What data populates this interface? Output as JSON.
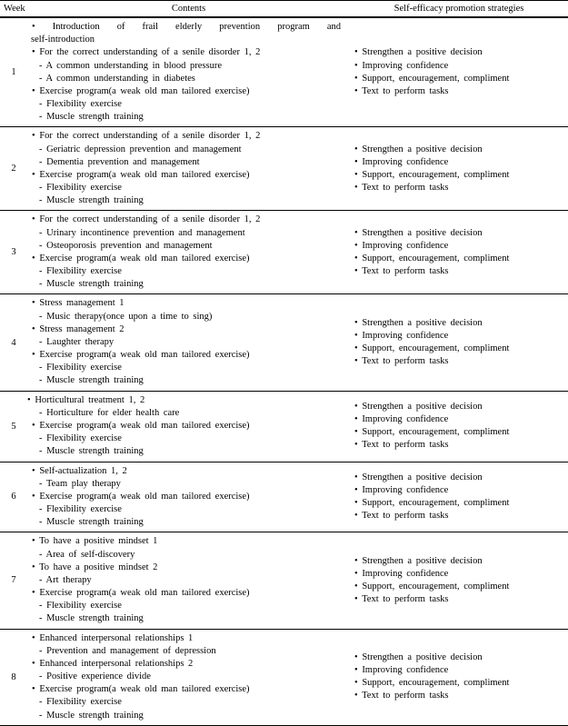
{
  "headers": {
    "week": "Week",
    "contents": "Contents",
    "strategies": "Self-efficacy promotion strategies"
  },
  "strategies_common": [
    "Strengthen a positive decision",
    "Improving confidence",
    "Support, encouragement, compliment",
    "Text to perform tasks"
  ],
  "rows": [
    {
      "week": "1",
      "contents": [
        {
          "type": "bullet-justify",
          "text": "Introduction of frail elderly prevention program and"
        },
        {
          "type": "plain",
          "text": "self-introduction"
        },
        {
          "type": "bullet",
          "text": "For the correct understanding of a senile disorder 1, 2"
        },
        {
          "type": "sub",
          "text": "A common understanding in blood pressure"
        },
        {
          "type": "sub",
          "text": "A common understanding in diabetes"
        },
        {
          "type": "bullet",
          "text": "Exercise program(a weak old man tailored exercise)"
        },
        {
          "type": "sub",
          "text": "Flexibility exercise"
        },
        {
          "type": "sub",
          "text": "Muscle strength training"
        }
      ]
    },
    {
      "week": "2",
      "contents": [
        {
          "type": "bullet",
          "text": "For the correct understanding of a senile disorder 1, 2"
        },
        {
          "type": "sub",
          "text": "Geriatric depression prevention and management"
        },
        {
          "type": "sub",
          "text": "Dementia prevention and management"
        },
        {
          "type": "bullet",
          "text": "Exercise program(a weak old man tailored exercise)"
        },
        {
          "type": "sub",
          "text": "Flexibility exercise"
        },
        {
          "type": "sub",
          "text": "Muscle strength training"
        }
      ]
    },
    {
      "week": "3",
      "contents": [
        {
          "type": "bullet",
          "text": "For the correct understanding of a senile disorder 1, 2"
        },
        {
          "type": "sub",
          "text": "Urinary incontinence prevention and management"
        },
        {
          "type": "sub",
          "text": "Osteoporosis prevention and management"
        },
        {
          "type": "bullet",
          "text": "Exercise program(a weak old man tailored exercise)"
        },
        {
          "type": "sub",
          "text": "Flexibility exercise"
        },
        {
          "type": "sub",
          "text": "Muscle strength training"
        }
      ]
    },
    {
      "week": "4",
      "contents": [
        {
          "type": "bullet",
          "text": "Stress management 1"
        },
        {
          "type": "sub",
          "text": "Music therapy(once upon a time to sing)"
        },
        {
          "type": "bullet",
          "text": "Stress management 2"
        },
        {
          "type": "sub",
          "text": "Laughter therapy"
        },
        {
          "type": "bullet",
          "text": "Exercise program(a weak old man tailored exercise)"
        },
        {
          "type": "sub",
          "text": "Flexibility exercise"
        },
        {
          "type": "sub",
          "text": "Muscle strength training"
        }
      ]
    },
    {
      "week": "5",
      "contents": [
        {
          "type": "bullet-tight",
          "text": "Horticultural treatment 1, 2"
        },
        {
          "type": "sub",
          "text": "Horticulture for elder health care"
        },
        {
          "type": "bullet",
          "text": "Exercise program(a weak old man tailored exercise)"
        },
        {
          "type": "sub",
          "text": "Flexibility exercise"
        },
        {
          "type": "sub",
          "text": "Muscle strength training"
        }
      ]
    },
    {
      "week": "6",
      "contents": [
        {
          "type": "bullet",
          "text": "Self-actualization 1, 2"
        },
        {
          "type": "sub",
          "text": "Team play therapy"
        },
        {
          "type": "bullet",
          "text": "Exercise program(a weak old man tailored exercise)"
        },
        {
          "type": "sub",
          "text": "Flexibility exercise"
        },
        {
          "type": "sub",
          "text": "Muscle strength training"
        }
      ]
    },
    {
      "week": "7",
      "contents": [
        {
          "type": "bullet",
          "text": "To have a positive mindset 1"
        },
        {
          "type": "sub",
          "text": "Area of self-discovery"
        },
        {
          "type": "bullet",
          "text": "To have a positive mindset 2"
        },
        {
          "type": "sub",
          "text": "Art therapy"
        },
        {
          "type": "bullet",
          "text": "Exercise program(a weak old man tailored exercise)"
        },
        {
          "type": "sub",
          "text": "Flexibility exercise"
        },
        {
          "type": "sub",
          "text": "Muscle strength training"
        }
      ]
    },
    {
      "week": "8",
      "contents": [
        {
          "type": "bullet",
          "text": "Enhanced interpersonal relationships 1"
        },
        {
          "type": "sub",
          "text": "Prevention and management of depression"
        },
        {
          "type": "bullet",
          "text": "Enhanced interpersonal relationships 2"
        },
        {
          "type": "sub",
          "text": "Positive experience divide"
        },
        {
          "type": "bullet",
          "text": "Exercise program(a weak old man tailored exercise)"
        },
        {
          "type": "sub",
          "text": "Flexibility exercise"
        },
        {
          "type": "sub",
          "text": "Muscle strength training"
        }
      ]
    }
  ]
}
